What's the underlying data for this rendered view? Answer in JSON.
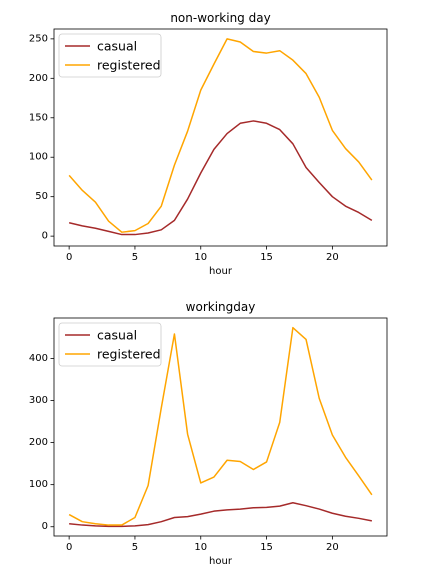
{
  "colors": {
    "casual": "#a52a2a",
    "registered": "#ffa500",
    "axis": "#000000",
    "legend_border": "#cccccc"
  },
  "chart_data": [
    {
      "type": "line",
      "title": "non-working day",
      "xlabel": "hour",
      "ylabel": "",
      "grid": false,
      "legend_position": "top-left",
      "xlim": [
        -1.15,
        24.15
      ],
      "ylim": [
        -12.5,
        262.5
      ],
      "xticks": [
        0,
        5,
        10,
        15,
        20
      ],
      "xtick_labels": [
        "0",
        "5",
        "10",
        "15",
        "20"
      ],
      "yticks": [
        0,
        50,
        100,
        150,
        200,
        250
      ],
      "ytick_labels": [
        "0",
        "50",
        "100",
        "150",
        "200",
        "250"
      ],
      "x": [
        0,
        1,
        2,
        3,
        4,
        5,
        6,
        7,
        8,
        9,
        10,
        11,
        12,
        13,
        14,
        15,
        16,
        17,
        18,
        19,
        20,
        21,
        22,
        23
      ],
      "series": [
        {
          "name": "casual",
          "color": "#a52a2a",
          "values": [
            17,
            13,
            10,
            6,
            2,
            2,
            4,
            8,
            20,
            47,
            80,
            110,
            130,
            143,
            146,
            143,
            135,
            117,
            87,
            68,
            50,
            38,
            30,
            20
          ]
        },
        {
          "name": "registered",
          "color": "#ffa500",
          "values": [
            77,
            58,
            43,
            19,
            5,
            7,
            16,
            38,
            90,
            133,
            185,
            218,
            250,
            246,
            234,
            232,
            235,
            223,
            206,
            176,
            134,
            111,
            94,
            71
          ]
        }
      ]
    },
    {
      "type": "line",
      "title": "workingday",
      "xlabel": "hour",
      "ylabel": "",
      "grid": false,
      "legend_position": "top-left",
      "xlim": [
        -1.15,
        24.15
      ],
      "ylim": [
        -22,
        496
      ],
      "xticks": [
        0,
        5,
        10,
        15,
        20
      ],
      "xtick_labels": [
        "0",
        "5",
        "10",
        "15",
        "20"
      ],
      "yticks": [
        0,
        100,
        200,
        300,
        400
      ],
      "ytick_labels": [
        "0",
        "100",
        "200",
        "300",
        "400"
      ],
      "x": [
        0,
        1,
        2,
        3,
        4,
        5,
        6,
        7,
        8,
        9,
        10,
        11,
        12,
        13,
        14,
        15,
        16,
        17,
        18,
        19,
        20,
        21,
        22,
        23
      ],
      "series": [
        {
          "name": "casual",
          "color": "#a52a2a",
          "values": [
            7,
            4,
            2,
            1,
            1,
            2,
            5,
            12,
            22,
            24,
            30,
            37,
            40,
            42,
            45,
            46,
            49,
            57,
            50,
            42,
            32,
            25,
            20,
            14
          ]
        },
        {
          "name": "registered",
          "color": "#ffa500",
          "values": [
            29,
            12,
            7,
            4,
            4,
            22,
            98,
            282,
            458,
            220,
            104,
            118,
            158,
            155,
            136,
            154,
            248,
            473,
            445,
            305,
            218,
            165,
            121,
            76
          ]
        }
      ]
    }
  ]
}
